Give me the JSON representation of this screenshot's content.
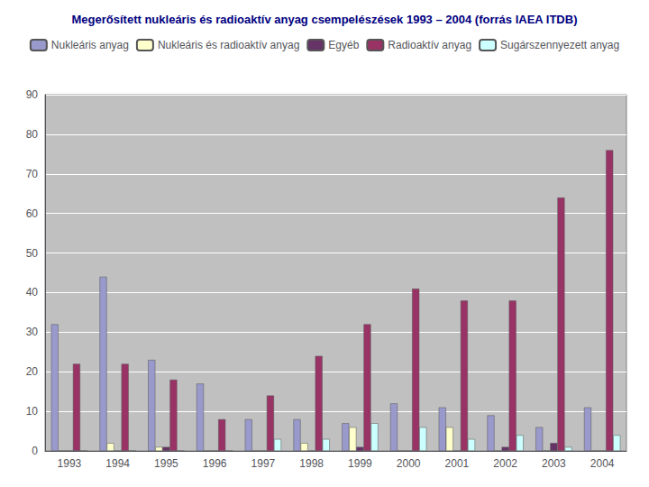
{
  "chart_data": {
    "type": "bar",
    "title": "Megerősített nukleáris és radioaktív anyag csempelészések 1993 – 2004 (forrás IAEA ITDB)",
    "categories": [
      "1993",
      "1994",
      "1995",
      "1996",
      "1997",
      "1998",
      "1999",
      "2000",
      "2001",
      "2002",
      "2003",
      "2004"
    ],
    "series": [
      {
        "name": "Nukleáris anyag",
        "color": "#9999cc",
        "values": [
          32,
          44,
          23,
          17,
          8,
          8,
          7,
          12,
          11,
          9,
          6,
          11
        ]
      },
      {
        "name": "Nukleáris és radioaktív anyag",
        "color": "#ffffcc",
        "values": [
          0,
          2,
          1,
          0,
          0,
          2,
          6,
          0,
          6,
          0,
          0,
          0
        ]
      },
      {
        "name": "Egyéb",
        "color": "#663366",
        "values": [
          0,
          0,
          1,
          0,
          0,
          0,
          1,
          0,
          0,
          1,
          2,
          0
        ]
      },
      {
        "name": "Radioaktív anyag",
        "color": "#993366",
        "values": [
          22,
          22,
          18,
          8,
          14,
          24,
          32,
          41,
          38,
          38,
          64,
          76
        ]
      },
      {
        "name": "Sugárszennyezett anyag",
        "color": "#ccffff",
        "values": [
          0,
          0,
          0,
          0,
          3,
          3,
          7,
          6,
          3,
          4,
          1,
          4
        ]
      }
    ],
    "ylim": [
      0,
      90
    ],
    "yticks": [
      0,
      10,
      20,
      30,
      40,
      50,
      60,
      70,
      80,
      90
    ],
    "grid": true,
    "legend": "top"
  }
}
